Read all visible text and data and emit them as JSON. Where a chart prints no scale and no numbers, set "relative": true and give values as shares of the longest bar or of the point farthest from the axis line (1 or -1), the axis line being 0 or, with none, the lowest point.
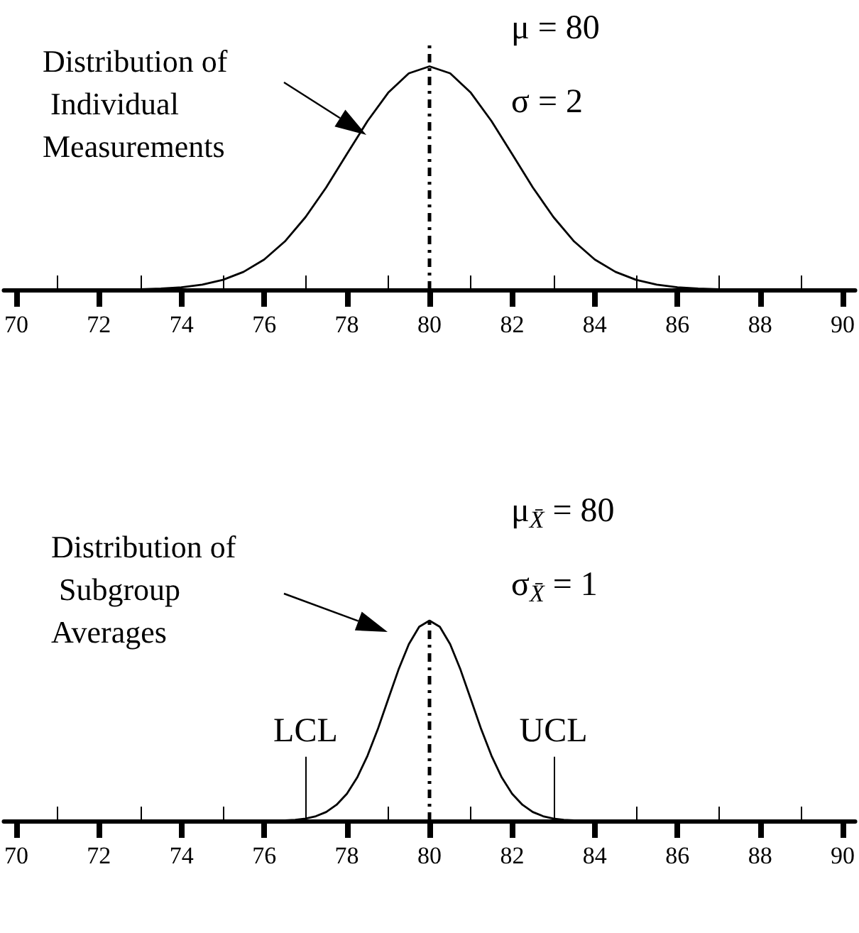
{
  "chart_data": [
    {
      "type": "line",
      "relative": true,
      "x": [
        72.5,
        73,
        73.5,
        74,
        74.5,
        75,
        75.5,
        76,
        76.5,
        77,
        77.5,
        78,
        78.5,
        79,
        79.5,
        80,
        80.5,
        81,
        81.5,
        82,
        82.5,
        83,
        83.5,
        84,
        84.5,
        85,
        85.5,
        86,
        86.5,
        87,
        87.5
      ],
      "series": [
        {
          "color": "#000000",
          "values": [
            0.001,
            0.002,
            0.005,
            0.011,
            0.023,
            0.044,
            0.08,
            0.135,
            0.216,
            0.325,
            0.458,
            0.607,
            0.755,
            0.882,
            0.969,
            1,
            0.969,
            0.882,
            0.755,
            0.607,
            0.458,
            0.325,
            0.216,
            0.135,
            0.08,
            0.044,
            0.023,
            0.011,
            0.005,
            0.002,
            0.001
          ]
        }
      ],
      "xlim": [
        69.7,
        90.3
      ],
      "xticks": [
        70,
        {
          "value": 71,
          "label": null
        },
        72,
        {
          "value": 73,
          "label": null
        },
        74,
        {
          "value": 75,
          "label": null
        },
        76,
        {
          "value": 77,
          "label": null
        },
        78,
        {
          "value": 79,
          "label": null
        },
        80,
        {
          "value": 81,
          "label": null
        },
        82,
        {
          "value": 83,
          "label": null
        },
        84,
        {
          "value": 85,
          "label": null
        },
        86,
        {
          "value": 87,
          "label": null
        },
        88,
        {
          "value": 89,
          "label": null
        },
        90
      ],
      "ref_lines": [
        {
          "axis": "x",
          "value": 80,
          "line_style": "dotted"
        }
      ],
      "annotations": [
        "Distribution of Individual Measurements",
        "μ = 80",
        "σ = 2"
      ]
    },
    {
      "type": "line",
      "relative": true,
      "x": [
        76.25,
        76.5,
        76.75,
        77,
        77.25,
        77.5,
        77.75,
        78,
        78.25,
        78.5,
        78.75,
        79,
        79.25,
        79.5,
        79.75,
        80,
        80.25,
        80.5,
        80.75,
        81,
        81.25,
        81.5,
        81.75,
        82,
        82.25,
        82.5,
        82.75,
        83,
        83.25,
        83.5,
        83.75
      ],
      "series": [
        {
          "color": "#000000",
          "values": [
            0.001,
            0.002,
            0.005,
            0.011,
            0.023,
            0.044,
            0.08,
            0.135,
            0.216,
            0.325,
            0.458,
            0.607,
            0.755,
            0.882,
            0.969,
            1,
            0.969,
            0.882,
            0.755,
            0.607,
            0.458,
            0.325,
            0.216,
            0.135,
            0.08,
            0.044,
            0.023,
            0.011,
            0.005,
            0.002,
            0.001
          ]
        }
      ],
      "xlim": [
        69.7,
        90.3
      ],
      "xticks": [
        70,
        {
          "value": 71,
          "label": null
        },
        72,
        {
          "value": 73,
          "label": null
        },
        74,
        {
          "value": 75,
          "label": null
        },
        76,
        {
          "value": 77,
          "label": null
        },
        78,
        {
          "value": 79,
          "label": null
        },
        80,
        {
          "value": 81,
          "label": null
        },
        82,
        {
          "value": 83,
          "label": null
        },
        84,
        {
          "value": 85,
          "label": null
        },
        86,
        {
          "value": 87,
          "label": null
        },
        88,
        {
          "value": 89,
          "label": null
        },
        90
      ],
      "ref_lines": [
        {
          "axis": "x",
          "value": 80,
          "line_style": "dotted"
        },
        {
          "axis": "x",
          "value": 77,
          "label": "LCL"
        },
        {
          "axis": "x",
          "value": 83,
          "label": "UCL"
        }
      ],
      "annotations": [
        "Distribution of Subgroup Averages",
        "μ$_{X̄}$ = 80",
        "σ$_{X̄}$ = 1"
      ]
    }
  ]
}
